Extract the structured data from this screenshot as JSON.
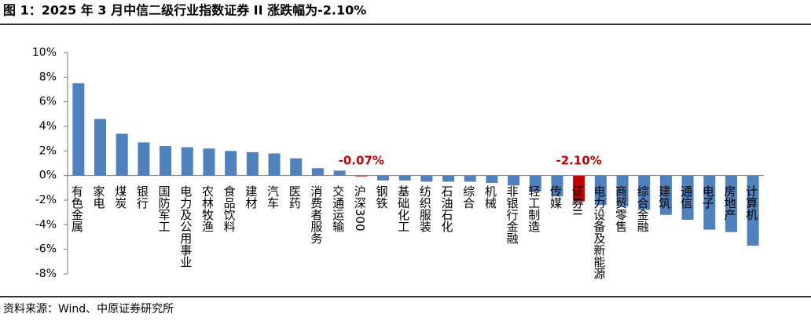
{
  "title": "图 1：2025 年 3 月中信二级行业指数证券 II 涨跌幅为-2.10%",
  "source": "资料来源：Wind、中原证券研究所",
  "chart_data": {
    "type": "bar",
    "categories": [
      "有色金属",
      "家电",
      "煤炭",
      "银行",
      "国防军工",
      "电力及公用事业",
      "农林牧渔",
      "食品饮料",
      "建材",
      "汽车",
      "医药",
      "消费者服务",
      "交通运输",
      "沪深300",
      "钢铁",
      "基础化工",
      "纺织服装",
      "石油石化",
      "综合",
      "机械",
      "非银行金融",
      "轻工制造",
      "传媒",
      "证券II",
      "电力设备及新能源",
      "商贸零售",
      "综合金融",
      "建筑",
      "通信",
      "电子",
      "房地产",
      "计算机"
    ],
    "values": [
      7.5,
      4.6,
      3.4,
      2.7,
      2.4,
      2.3,
      2.2,
      2.0,
      1.9,
      1.8,
      1.4,
      0.6,
      0.4,
      -0.07,
      -0.4,
      -0.4,
      -0.5,
      -0.5,
      -0.5,
      -0.6,
      -0.8,
      -1.3,
      -1.7,
      -2.1,
      -2.4,
      -2.5,
      -2.8,
      -3.2,
      -3.6,
      -4.4,
      -4.6,
      -5.7
    ],
    "value_labels": [
      null,
      null,
      null,
      null,
      null,
      null,
      null,
      null,
      null,
      null,
      null,
      null,
      null,
      "-0.07%",
      null,
      null,
      null,
      null,
      null,
      null,
      null,
      null,
      null,
      "-2.10%",
      null,
      null,
      null,
      null,
      null,
      null,
      null,
      null
    ],
    "colors": [
      "#4f81bd",
      "#4f81bd",
      "#4f81bd",
      "#4f81bd",
      "#4f81bd",
      "#4f81bd",
      "#4f81bd",
      "#4f81bd",
      "#4f81bd",
      "#4f81bd",
      "#4f81bd",
      "#4f81bd",
      "#4f81bd",
      "#c00000",
      "#4f81bd",
      "#4f81bd",
      "#4f81bd",
      "#4f81bd",
      "#4f81bd",
      "#4f81bd",
      "#4f81bd",
      "#4f81bd",
      "#4f81bd",
      "#c00000",
      "#4f81bd",
      "#4f81bd",
      "#4f81bd",
      "#4f81bd",
      "#4f81bd",
      "#4f81bd",
      "#4f81bd",
      "#4f81bd"
    ],
    "ylim": [
      -8,
      10
    ],
    "yticks": [
      {
        "value": -8,
        "label": "-8%"
      },
      {
        "value": -6,
        "label": "-6%"
      },
      {
        "value": -4,
        "label": "-4%"
      },
      {
        "value": -2,
        "label": "-2%"
      },
      {
        "value": 0,
        "label": "0%"
      },
      {
        "value": 2,
        "label": "2%"
      },
      {
        "value": 4,
        "label": "4%"
      },
      {
        "value": 6,
        "label": "6%"
      },
      {
        "value": 8,
        "label": "8%"
      },
      {
        "value": 10,
        "label": "10%"
      }
    ],
    "grid": false
  }
}
